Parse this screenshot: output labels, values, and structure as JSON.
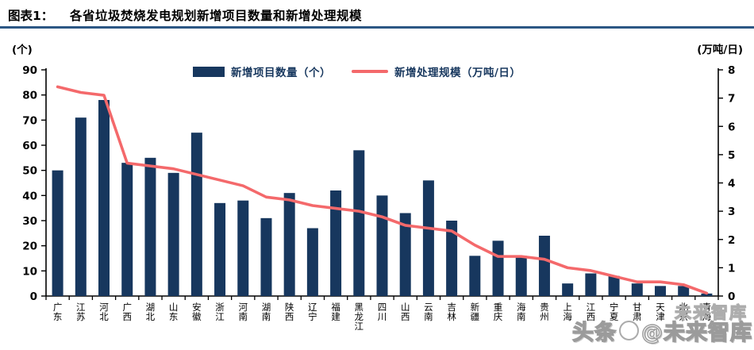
{
  "header": {
    "tag": "图表1：",
    "title": "各省垃圾焚烧发电规划新增项目数量和新增处理规模"
  },
  "legend": {
    "bars_label": "新增项目数量（个）",
    "line_label": "新增处理规模（万吨/日）"
  },
  "watermark": {
    "prefix": "头条",
    "suffix": "@未来智库",
    "shadow_text": "未来智库",
    "logo": "cat-circle-logo"
  },
  "colors": {
    "bar": "#17375E",
    "line": "#F4696B",
    "axis": "#000000",
    "title_rule": "#2C5784",
    "legend_text": "#17375E",
    "watermark": "#9B9B9B"
  },
  "chart_data": {
    "type": "bar",
    "subtype": "bar+line combo, dual axis",
    "title": "各省垃圾焚烧发电规划新增项目数量和新增处理规模",
    "categories": [
      "广东",
      "江苏",
      "河北",
      "广西",
      "湖北",
      "山东",
      "安徽",
      "浙江",
      "河南",
      "湖南",
      "陕西",
      "辽宁",
      "福建",
      "黑龙江",
      "四川",
      "山西",
      "云南",
      "吉林",
      "新疆",
      "重庆",
      "海南",
      "贵州",
      "上海",
      "江西",
      "宁夏",
      "甘肃",
      "天津",
      "北京",
      "青海"
    ],
    "series": [
      {
        "name": "新增项目数量（个）",
        "type": "bar",
        "axis": "left",
        "values": [
          50,
          71,
          78,
          53,
          55,
          49,
          65,
          37,
          38,
          31,
          41,
          27,
          42,
          58,
          40,
          33,
          46,
          30,
          16,
          22,
          16,
          24,
          5,
          9,
          8,
          5,
          4,
          4,
          1
        ]
      },
      {
        "name": "新增处理规模（万吨/日）",
        "type": "line",
        "axis": "right",
        "values": [
          7.4,
          7.2,
          7.1,
          4.7,
          4.6,
          4.5,
          4.3,
          4.1,
          3.9,
          3.5,
          3.4,
          3.2,
          3.1,
          3.0,
          2.8,
          2.5,
          2.4,
          2.3,
          1.8,
          1.4,
          1.4,
          1.3,
          1.0,
          0.9,
          0.7,
          0.5,
          0.5,
          0.4,
          0.1
        ]
      }
    ],
    "left_axis": {
      "label": "(个)",
      "min": 0,
      "max": 90,
      "step": 10,
      "ticks": [
        0,
        10,
        20,
        30,
        40,
        50,
        60,
        70,
        80,
        90
      ]
    },
    "right_axis": {
      "label": "(万吨/日)",
      "min": 0,
      "max": 8,
      "step": 1,
      "ticks": [
        0,
        1,
        2,
        3,
        4,
        5,
        6,
        7,
        8
      ]
    },
    "grid": false,
    "legend_position": "top-center"
  }
}
